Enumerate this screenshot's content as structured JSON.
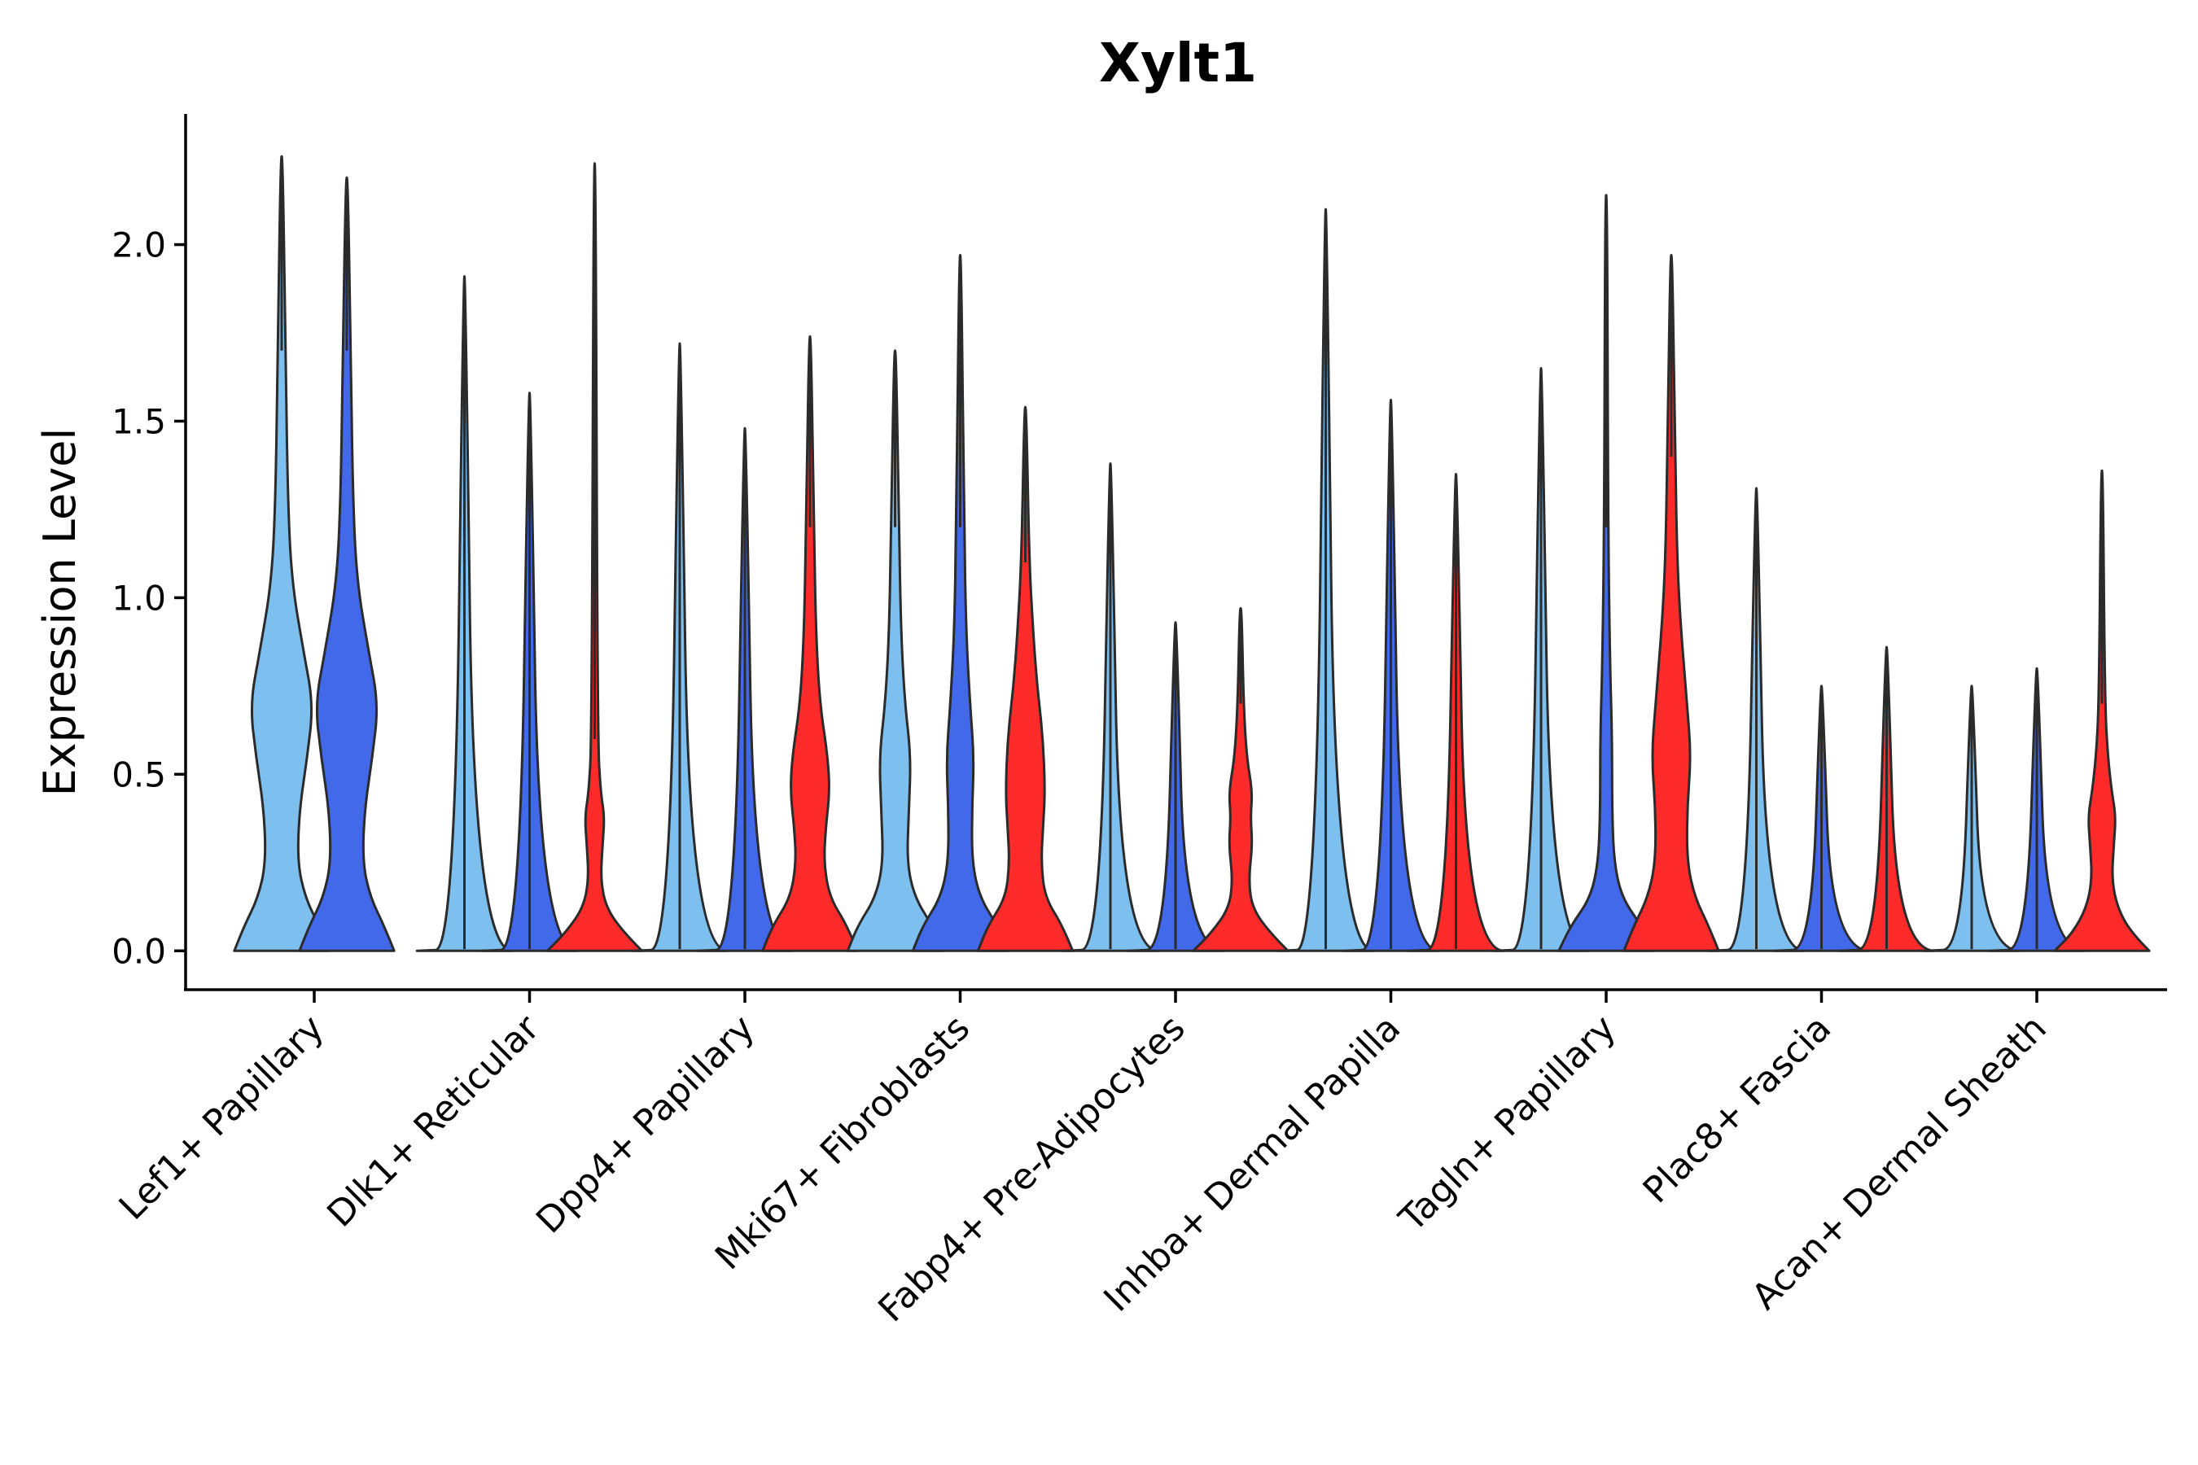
{
  "chart_data": {
    "type": "violin",
    "title": "Xylt1",
    "xlabel": "",
    "ylabel": "Expression Level",
    "ylim": [
      -0.11,
      2.37
    ],
    "yticks": [
      0.0,
      0.5,
      1.0,
      1.5,
      2.0
    ],
    "ytick_labels": [
      "0.0",
      "0.5",
      "1.0",
      "1.5",
      "2.0"
    ],
    "colors": {
      "group1": "#7dbfee",
      "group2": "#4169e9",
      "group3": "#ff2a2a"
    },
    "categories": [
      {
        "label": "Lef1+ Papillary",
        "violins": [
          {
            "group": "group1",
            "max": 2.25,
            "shape": [
              [
                0,
                0.24
              ],
              [
                0.07,
                0.19
              ],
              [
                0.15,
                0.12
              ],
              [
                0.25,
                0.08
              ],
              [
                0.4,
                0.09
              ],
              [
                0.55,
                0.13
              ],
              [
                0.7,
                0.16
              ],
              [
                0.85,
                0.11
              ],
              [
                1.05,
                0.05
              ],
              [
                1.3,
                0.03
              ],
              [
                1.7,
                0.02
              ]
            ]
          },
          {
            "group": "group2",
            "max": 2.19,
            "shape": [
              [
                0,
                0.24
              ],
              [
                0.07,
                0.19
              ],
              [
                0.15,
                0.12
              ],
              [
                0.25,
                0.08
              ],
              [
                0.4,
                0.09
              ],
              [
                0.55,
                0.13
              ],
              [
                0.7,
                0.16
              ],
              [
                0.85,
                0.11
              ],
              [
                1.05,
                0.05
              ],
              [
                1.3,
                0.03
              ],
              [
                1.7,
                0.02
              ]
            ]
          }
        ]
      },
      {
        "label": "Dlk1+ Reticular",
        "violins": [
          {
            "group": "group1",
            "max": 1.91,
            "shape": [
              [
                0,
                0.24
              ],
              [
                0.005,
                0.05
              ]
            ]
          },
          {
            "group": "group2",
            "max": 1.58,
            "shape": [
              [
                0,
                0.24
              ],
              [
                0.005,
                0.05
              ]
            ]
          },
          {
            "group": "group3",
            "max": 2.23,
            "shape": [
              [
                0,
                0.24
              ],
              [
                0.05,
                0.15
              ],
              [
                0.12,
                0.06
              ],
              [
                0.2,
                0.03
              ],
              [
                0.3,
                0.04
              ],
              [
                0.38,
                0.05
              ],
              [
                0.45,
                0.03
              ],
              [
                0.6,
                0.015
              ]
            ]
          }
        ]
      },
      {
        "label": "Dpp4+ Papillary",
        "violins": [
          {
            "group": "group1",
            "max": 1.72,
            "shape": [
              [
                0,
                0.24
              ],
              [
                0.005,
                0.05
              ]
            ]
          },
          {
            "group": "group2",
            "max": 1.48,
            "shape": [
              [
                0,
                0.24
              ],
              [
                0.005,
                0.05
              ]
            ]
          },
          {
            "group": "group3",
            "max": 1.74,
            "shape": [
              [
                0,
                0.24
              ],
              [
                0.07,
                0.19
              ],
              [
                0.15,
                0.1
              ],
              [
                0.25,
                0.07
              ],
              [
                0.35,
                0.08
              ],
              [
                0.45,
                0.1
              ],
              [
                0.55,
                0.09
              ],
              [
                0.7,
                0.05
              ],
              [
                0.9,
                0.03
              ],
              [
                1.2,
                0.02
              ]
            ]
          }
        ]
      },
      {
        "label": "Mki67+ Fibroblasts",
        "violins": [
          {
            "group": "group1",
            "max": 1.7,
            "shape": [
              [
                0,
                0.24
              ],
              [
                0.07,
                0.19
              ],
              [
                0.15,
                0.1
              ],
              [
                0.25,
                0.06
              ],
              [
                0.4,
                0.07
              ],
              [
                0.55,
                0.08
              ],
              [
                0.7,
                0.05
              ],
              [
                0.9,
                0.03
              ],
              [
                1.2,
                0.02
              ]
            ]
          },
          {
            "group": "group2",
            "max": 1.97,
            "shape": [
              [
                0,
                0.24
              ],
              [
                0.07,
                0.19
              ],
              [
                0.15,
                0.1
              ],
              [
                0.25,
                0.06
              ],
              [
                0.4,
                0.06
              ],
              [
                0.55,
                0.07
              ],
              [
                0.7,
                0.05
              ],
              [
                0.9,
                0.03
              ],
              [
                1.2,
                0.02
              ]
            ]
          },
          {
            "group": "group3",
            "max": 1.54,
            "shape": [
              [
                0,
                0.24
              ],
              [
                0.07,
                0.19
              ],
              [
                0.15,
                0.1
              ],
              [
                0.25,
                0.08
              ],
              [
                0.35,
                0.09
              ],
              [
                0.45,
                0.1
              ],
              [
                0.6,
                0.09
              ],
              [
                0.75,
                0.06
              ],
              [
                0.9,
                0.04
              ],
              [
                1.1,
                0.02
              ]
            ]
          }
        ]
      },
      {
        "label": "Fabp4+ Pre-Adipocytes",
        "violins": [
          {
            "group": "group1",
            "max": 1.38,
            "shape": [
              [
                0,
                0.24
              ],
              [
                0.005,
                0.05
              ]
            ]
          },
          {
            "group": "group2",
            "max": 0.93,
            "shape": [
              [
                0,
                0.24
              ],
              [
                0.005,
                0.05
              ]
            ]
          },
          {
            "group": "group3",
            "max": 0.97,
            "shape": [
              [
                0,
                0.24
              ],
              [
                0.05,
                0.15
              ],
              [
                0.12,
                0.06
              ],
              [
                0.2,
                0.04
              ],
              [
                0.3,
                0.06
              ],
              [
                0.38,
                0.05
              ],
              [
                0.45,
                0.06
              ],
              [
                0.55,
                0.03
              ],
              [
                0.7,
                0.015
              ]
            ]
          }
        ]
      },
      {
        "label": "Inhba+ Dermal Papilla",
        "violins": [
          {
            "group": "group1",
            "max": 2.1,
            "shape": [
              [
                0,
                0.24
              ],
              [
                0.005,
                0.05
              ]
            ]
          },
          {
            "group": "group2",
            "max": 1.56,
            "shape": [
              [
                0,
                0.24
              ],
              [
                0.005,
                0.05
              ]
            ]
          },
          {
            "group": "group3",
            "max": 1.35,
            "shape": [
              [
                0,
                0.24
              ],
              [
                0.005,
                0.05
              ]
            ]
          }
        ]
      },
      {
        "label": "Tagln+ Papillary",
        "violins": [
          {
            "group": "group1",
            "max": 1.65,
            "shape": [
              [
                0,
                0.24
              ],
              [
                0.005,
                0.05
              ]
            ]
          },
          {
            "group": "group2",
            "max": 2.14,
            "shape": [
              [
                0,
                0.24
              ],
              [
                0.07,
                0.18
              ],
              [
                0.15,
                0.08
              ],
              [
                0.25,
                0.04
              ],
              [
                0.4,
                0.03
              ],
              [
                0.6,
                0.03
              ],
              [
                0.8,
                0.02
              ],
              [
                1.2,
                0.01
              ]
            ]
          },
          {
            "group": "group3",
            "max": 1.97,
            "shape": [
              [
                0,
                0.24
              ],
              [
                0.07,
                0.19
              ],
              [
                0.15,
                0.12
              ],
              [
                0.25,
                0.08
              ],
              [
                0.4,
                0.08
              ],
              [
                0.55,
                0.1
              ],
              [
                0.7,
                0.08
              ],
              [
                0.9,
                0.05
              ],
              [
                1.1,
                0.03
              ],
              [
                1.4,
                0.02
              ]
            ]
          }
        ]
      },
      {
        "label": "Plac8+ Fascia",
        "violins": [
          {
            "group": "group1",
            "max": 1.31,
            "shape": [
              [
                0,
                0.24
              ],
              [
                0.005,
                0.05
              ]
            ]
          },
          {
            "group": "group2",
            "max": 0.75,
            "shape": [
              [
                0,
                0.24
              ],
              [
                0.005,
                0.05
              ]
            ]
          },
          {
            "group": "group3",
            "max": 0.86,
            "shape": [
              [
                0,
                0.24
              ],
              [
                0.005,
                0.05
              ]
            ]
          }
        ]
      },
      {
        "label": "Acan+ Dermal Sheath",
        "violins": [
          {
            "group": "group1",
            "max": 0.75,
            "shape": [
              [
                0,
                0.24
              ],
              [
                0.005,
                0.05
              ]
            ]
          },
          {
            "group": "group2",
            "max": 0.8,
            "shape": [
              [
                0,
                0.24
              ],
              [
                0.005,
                0.05
              ]
            ]
          },
          {
            "group": "group3",
            "max": 1.36,
            "shape": [
              [
                0,
                0.24
              ],
              [
                0.05,
                0.15
              ],
              [
                0.12,
                0.08
              ],
              [
                0.2,
                0.05
              ],
              [
                0.3,
                0.06
              ],
              [
                0.38,
                0.07
              ],
              [
                0.45,
                0.05
              ],
              [
                0.55,
                0.03
              ],
              [
                0.7,
                0.015
              ]
            ]
          }
        ]
      }
    ]
  }
}
